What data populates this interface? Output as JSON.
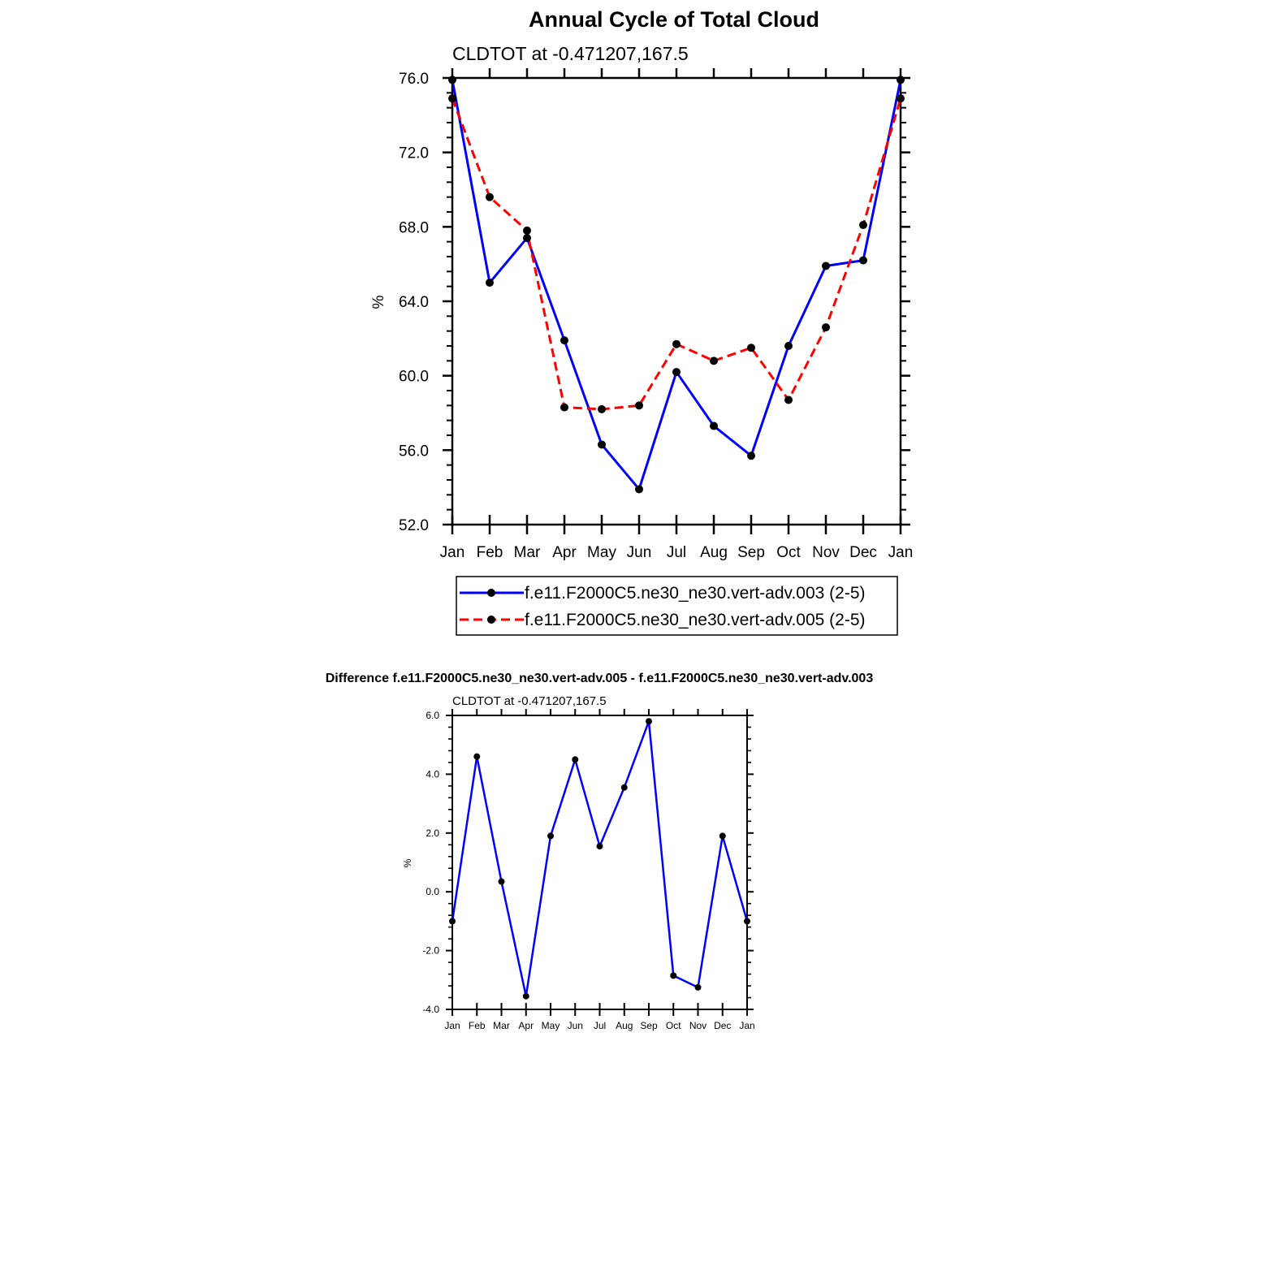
{
  "chart_data": [
    {
      "type": "line",
      "title": "Annual Cycle of Total Cloud",
      "subtitle": "CLDTOT at -0.471207,167.5",
      "ylabel": "%",
      "ylim": [
        52.0,
        76.0
      ],
      "yticks": [
        52.0,
        56.0,
        60.0,
        64.0,
        68.0,
        72.0,
        76.0
      ],
      "ytick_labels": [
        "52.0",
        "56.0",
        "60.0",
        "64.0",
        "68.0",
        "72.0",
        "76.0"
      ],
      "categories": [
        "Jan",
        "Feb",
        "Mar",
        "Apr",
        "May",
        "Jun",
        "Jul",
        "Aug",
        "Sep",
        "Oct",
        "Nov",
        "Dec",
        "Jan"
      ],
      "legend_position": "bottom",
      "series": [
        {
          "name": "f.e11.F2000C5.ne30_ne30.vert-adv.003 (2-5)",
          "style": "solid",
          "color": "#0000ff",
          "values": [
            75.9,
            65.0,
            67.4,
            61.9,
            56.3,
            53.9,
            60.2,
            57.3,
            55.7,
            61.6,
            65.9,
            66.2,
            75.9
          ]
        },
        {
          "name": "f.e11.F2000C5.ne30_ne30.vert-adv.005 (2-5)",
          "style": "dashed",
          "color": "#ff0000",
          "values": [
            74.9,
            69.6,
            67.8,
            58.3,
            58.2,
            58.4,
            61.7,
            60.8,
            61.5,
            58.7,
            62.6,
            68.1,
            74.9
          ]
        }
      ]
    },
    {
      "type": "line",
      "title": "Difference f.e11.F2000C5.ne30_ne30.vert-adv.005 - f.e11.F2000C5.ne30_ne30.vert-adv.003",
      "subtitle": "CLDTOT at -0.471207,167.5",
      "ylabel": "%",
      "ylim": [
        -4.0,
        6.0
      ],
      "yticks": [
        -4.0,
        -2.0,
        0.0,
        2.0,
        4.0,
        6.0
      ],
      "ytick_labels": [
        "-4.0",
        "-2.0",
        "0.0",
        "2.0",
        "4.0",
        "6.0"
      ],
      "categories": [
        "Jan",
        "Feb",
        "Mar",
        "Apr",
        "May",
        "Jun",
        "Jul",
        "Aug",
        "Sep",
        "Oct",
        "Nov",
        "Dec",
        "Jan"
      ],
      "series": [
        {
          "name": "difference",
          "style": "solid",
          "color": "#0000ff",
          "values": [
            -1.0,
            4.6,
            0.35,
            -3.55,
            1.9,
            4.5,
            1.55,
            3.55,
            5.8,
            -2.85,
            -3.25,
            1.9,
            -1.0
          ]
        }
      ]
    }
  ]
}
